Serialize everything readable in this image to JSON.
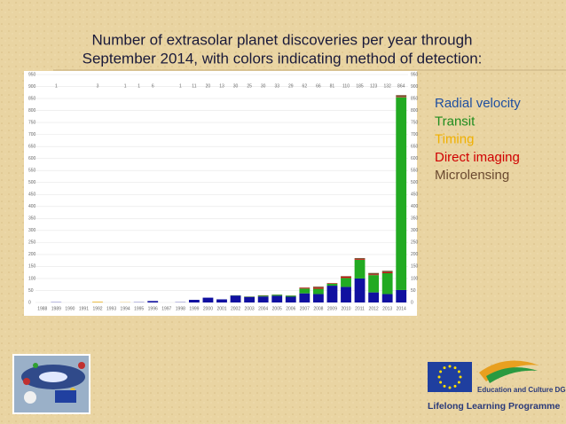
{
  "chart_data": {
    "type": "stacked_bar",
    "title_lines": [
      "Number of extrasolar planet discoveries per year through",
      "September 2014, with colors indicating method of detection:"
    ],
    "categories": [
      "1988",
      "1989",
      "1990",
      "1991",
      "1992",
      "1993",
      "1994",
      "1995",
      "1996",
      "1997",
      "1998",
      "1999",
      "2000",
      "2001",
      "2002",
      "2003",
      "2004",
      "2005",
      "2006",
      "2007",
      "2008",
      "2009",
      "2010",
      "2011",
      "2012",
      "2013",
      "2014"
    ],
    "series": [
      {
        "name": "Radial velocity",
        "color": "#1010a0",
        "text_color": "#1f4fa0",
        "values": [
          0,
          1,
          0,
          0,
          0,
          0,
          0,
          1,
          6,
          0,
          1,
          11,
          20,
          13,
          29,
          23,
          25,
          28,
          24,
          38,
          35,
          70,
          65,
          100,
          42,
          35,
          52
        ]
      },
      {
        "name": "Transit",
        "color": "#22aa22",
        "text_color": "#1e8c1e",
        "values": [
          0,
          0,
          0,
          0,
          0,
          0,
          0,
          0,
          0,
          0,
          0,
          0,
          0,
          0,
          1,
          1,
          3,
          4,
          4,
          20,
          22,
          8,
          37,
          78,
          72,
          87,
          803
        ]
      },
      {
        "name": "Timing",
        "color": "#e8b020",
        "text_color": "#f0b000",
        "values": [
          0,
          0,
          0,
          0,
          3,
          0,
          1,
          0,
          0,
          0,
          0,
          0,
          0,
          0,
          0,
          0,
          0,
          0,
          0,
          0,
          0,
          0,
          0,
          0,
          0,
          0,
          0
        ]
      },
      {
        "name": "Direct imaging",
        "color": "#cc1010",
        "text_color": "#d00000",
        "values": [
          0,
          0,
          0,
          0,
          0,
          0,
          0,
          0,
          0,
          0,
          0,
          0,
          0,
          0,
          0,
          0,
          0,
          0,
          0,
          3,
          5,
          2,
          6,
          3,
          3,
          4,
          2
        ]
      },
      {
        "name": "Microlensing",
        "color": "#7a5030",
        "text_color": "#6b4a30",
        "values": [
          0,
          0,
          0,
          0,
          0,
          0,
          0,
          0,
          0,
          0,
          0,
          0,
          0,
          0,
          0,
          1,
          2,
          1,
          1,
          1,
          4,
          1,
          2,
          4,
          6,
          6,
          7
        ]
      }
    ],
    "totals": [
      null,
      1,
      null,
      null,
      3,
      null,
      1,
      1,
      6,
      null,
      1,
      11,
      20,
      13,
      30,
      25,
      30,
      33,
      29,
      62,
      66,
      81,
      110,
      185,
      123,
      132,
      864
    ],
    "ylim": [
      0,
      950
    ],
    "yticks": [
      0,
      50,
      100,
      150,
      200,
      250,
      300,
      350,
      400,
      450,
      500,
      550,
      600,
      650,
      700,
      750,
      800,
      850,
      900,
      950
    ],
    "grid": true
  },
  "footer": {
    "org": "Education and Culture DG",
    "programme": "Lifelong Learning Programme"
  }
}
